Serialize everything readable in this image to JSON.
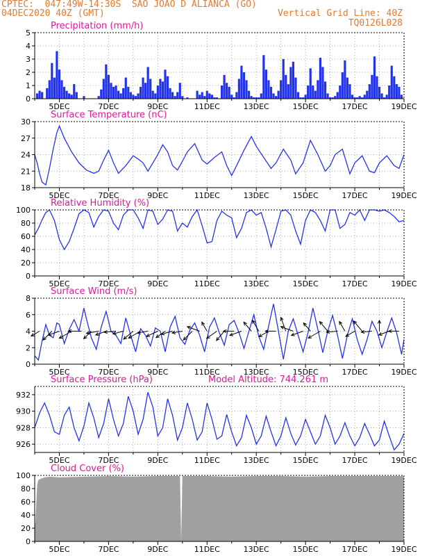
{
  "header": {
    "line1": "CPTEC:  047:49W-14:30S  SAO JOAO D ALIANCA (GO)",
    "line2": "04DEC2020 40Z (GMT)",
    "grid_note": "Vertical Grid Line: 40Z",
    "run_code": "TQ0126L028"
  },
  "colors": {
    "header": "#e8782a",
    "title": "#e0189a",
    "series": "#2233ee",
    "cloud": "#a0a0a0",
    "grid": "#888888"
  },
  "x_axis": {
    "start": "04DEC2020 00Z",
    "end": "19DEC2020 00Z",
    "tick_labels": [
      "5DEC",
      "7DEC",
      "9DEC",
      "11DEC",
      "13DEC",
      "15DEC",
      "17DEC",
      "19DEC"
    ]
  },
  "chart_data": [
    {
      "type": "bar",
      "title": "Precipitation (mm/h)",
      "ylim": [
        0,
        5
      ],
      "yticks": [
        "0",
        "1",
        "2",
        "3",
        "4",
        "5"
      ],
      "x_units": "days since 04DEC2020 00Z",
      "x": [
        0.1,
        0.2,
        0.3,
        0.5,
        0.6,
        0.7,
        0.8,
        0.9,
        1.0,
        1.1,
        1.2,
        1.3,
        1.4,
        1.5,
        1.6,
        1.7,
        2.0,
        2.6,
        2.7,
        2.8,
        2.9,
        3.0,
        3.1,
        3.2,
        3.3,
        3.4,
        3.5,
        3.6,
        3.7,
        3.8,
        3.9,
        4.0,
        4.1,
        4.2,
        4.3,
        4.4,
        4.5,
        4.6,
        4.7,
        4.8,
        4.9,
        5.0,
        5.1,
        5.2,
        5.3,
        5.4,
        5.5,
        5.6,
        5.7,
        5.8,
        5.9,
        6.0,
        6.2,
        6.6,
        6.7,
        6.8,
        6.9,
        7.0,
        7.1,
        7.2,
        7.3,
        7.4,
        7.6,
        7.7,
        7.8,
        7.9,
        8.0,
        8.1,
        8.2,
        8.3,
        8.4,
        8.5,
        8.6,
        8.7,
        8.8,
        8.9,
        9.0,
        9.1,
        9.2,
        9.3,
        9.4,
        9.5,
        9.6,
        9.7,
        9.8,
        9.9,
        10.0,
        10.1,
        10.2,
        10.3,
        10.4,
        10.5,
        10.6,
        10.7,
        10.8,
        10.9,
        11.0,
        11.1,
        11.2,
        11.3,
        11.4,
        11.5,
        11.6,
        11.7,
        11.8,
        11.9,
        12.0,
        12.1,
        12.2,
        12.3,
        12.4,
        12.5,
        12.6,
        12.7,
        12.8,
        12.9,
        13.0,
        13.1,
        13.2,
        13.3,
        13.4,
        13.5,
        13.6,
        13.7,
        13.8,
        13.9,
        14.0,
        14.1,
        14.2,
        14.3,
        14.4,
        14.5,
        14.6,
        14.7,
        14.8,
        14.9
      ],
      "values": [
        0.4,
        0.6,
        0.5,
        0.8,
        1.4,
        2.7,
        1.6,
        3.6,
        2.2,
        1.4,
        0.9,
        0.6,
        0.4,
        0.3,
        1.1,
        0.5,
        0.2,
        0.2,
        0.7,
        1.5,
        2.6,
        1.8,
        1.2,
        0.9,
        1.0,
        0.6,
        0.4,
        0.8,
        1.6,
        0.9,
        0.5,
        0.3,
        0.2,
        0.4,
        0.9,
        1.6,
        1.2,
        2.4,
        1.5,
        0.6,
        0.4,
        1.0,
        1.5,
        1.3,
        2.2,
        1.7,
        0.8,
        0.5,
        0.2,
        0.5,
        1.2,
        0.2,
        0.1,
        0.6,
        0.3,
        0.5,
        0.2,
        0.6,
        0.4,
        0.3,
        0.1,
        0.1,
        1.0,
        1.8,
        1.2,
        0.9,
        0.3,
        0.1,
        0.5,
        1.5,
        2.5,
        2.0,
        1.4,
        0.6,
        0.2,
        0.1,
        0.1,
        0.1,
        0.4,
        3.3,
        2.2,
        1.4,
        0.9,
        0.4,
        0.2,
        0.6,
        1.4,
        3.0,
        1.8,
        1.1,
        2.4,
        2.8,
        1.6,
        0.5,
        0.1,
        0.1,
        0.3,
        1.0,
        2.3,
        1.0,
        0.6,
        1.4,
        3.1,
        2.4,
        1.3,
        0.4,
        0.1,
        0.1,
        0.2,
        0.5,
        1.0,
        2.0,
        2.9,
        1.6,
        1.1,
        0.3,
        0.1,
        0.1,
        0.2,
        0.1,
        0.3,
        0.6,
        1.1,
        1.8,
        3.2,
        1.7,
        0.9,
        0.4,
        0.1,
        0.3,
        1.0,
        2.5,
        1.7,
        1.1,
        0.9,
        0.3
      ]
    },
    {
      "type": "line",
      "title": "Surface Temperature (nC)",
      "ylim": [
        18,
        30
      ],
      "yticks": [
        "18",
        "21",
        "24",
        "27",
        "30"
      ],
      "x_units": "days since 04DEC2020 00Z",
      "x": [
        0,
        0.1,
        0.2,
        0.3,
        0.45,
        0.6,
        0.75,
        0.9,
        1.0,
        1.2,
        1.5,
        1.8,
        2.1,
        2.4,
        2.6,
        2.8,
        3.0,
        3.2,
        3.4,
        3.7,
        4.0,
        4.2,
        4.4,
        4.6,
        4.8,
        5.0,
        5.2,
        5.4,
        5.6,
        5.8,
        6.0,
        6.2,
        6.5,
        6.8,
        7.0,
        7.3,
        7.6,
        7.8,
        8.0,
        8.2,
        8.5,
        8.8,
        9.0,
        9.3,
        9.6,
        9.8,
        10.1,
        10.4,
        10.6,
        10.9,
        11.2,
        11.5,
        11.8,
        12.0,
        12.2,
        12.5,
        12.8,
        13.0,
        13.3,
        13.6,
        13.8,
        14.0,
        14.3,
        14.6,
        14.8,
        15.0
      ],
      "values": [
        24,
        22.5,
        20.5,
        19.0,
        18.5,
        21.5,
        25,
        28,
        29.2,
        27,
        24.5,
        22.5,
        21.2,
        20.6,
        21,
        23,
        24.8,
        22.5,
        20.6,
        22,
        23.8,
        23.2,
        22.5,
        21,
        22.5,
        24,
        25.8,
        24.5,
        22,
        21.2,
        22.8,
        24.5,
        26,
        23,
        22.3,
        23.5,
        24.5,
        22,
        20.2,
        22,
        24.8,
        27.3,
        25.5,
        23.5,
        21.5,
        22.5,
        25,
        23,
        20.5,
        22.5,
        26.6,
        24,
        21,
        22,
        24,
        25,
        20.5,
        22.5,
        23.8,
        21,
        20.7,
        22.5,
        23.8,
        22,
        21.5,
        24
      ]
    },
    {
      "type": "line",
      "title": "Relative Humidity (%)",
      "ylim": [
        0,
        100
      ],
      "yticks": [
        "0",
        "20",
        "40",
        "60",
        "80",
        "100"
      ],
      "x_units": "days since 04DEC2020 00Z",
      "x": [
        0,
        0.15,
        0.3,
        0.45,
        0.6,
        0.8,
        1.0,
        1.2,
        1.4,
        1.6,
        1.8,
        2.0,
        2.2,
        2.4,
        2.6,
        2.8,
        3.0,
        3.2,
        3.4,
        3.6,
        3.8,
        4.0,
        4.2,
        4.4,
        4.6,
        4.8,
        5.0,
        5.2,
        5.4,
        5.6,
        5.8,
        6.0,
        6.2,
        6.4,
        6.6,
        6.8,
        7.0,
        7.2,
        7.4,
        7.6,
        7.8,
        8.0,
        8.2,
        8.4,
        8.6,
        8.8,
        9.0,
        9.2,
        9.4,
        9.6,
        9.8,
        10.0,
        10.2,
        10.4,
        10.6,
        10.8,
        11.0,
        11.2,
        11.4,
        11.6,
        11.8,
        12.0,
        12.2,
        12.4,
        12.6,
        12.8,
        13.0,
        13.2,
        13.4,
        13.6,
        13.8,
        14.0,
        14.2,
        14.4,
        14.6,
        14.8,
        15.0
      ],
      "values": [
        62,
        72,
        85,
        96,
        100,
        84,
        55,
        40,
        52,
        72,
        94,
        100,
        96,
        74,
        90,
        100,
        98,
        80,
        70,
        92,
        100,
        100,
        88,
        72,
        100,
        98,
        78,
        86,
        100,
        98,
        68,
        80,
        74,
        90,
        100,
        76,
        50,
        52,
        84,
        98,
        92,
        88,
        58,
        72,
        96,
        100,
        92,
        96,
        72,
        44,
        70,
        98,
        100,
        92,
        68,
        48,
        84,
        100,
        96,
        84,
        68,
        100,
        100,
        72,
        78,
        96,
        92,
        100,
        84,
        100,
        100,
        98,
        100,
        96,
        90,
        82,
        84
      ]
    },
    {
      "type": "line",
      "title": "Surface Wind (m/s)",
      "ylim": [
        0,
        8
      ],
      "yticks": [
        "0",
        "2",
        "4",
        "6",
        "8"
      ],
      "x_units": "days since 04DEC2020 00Z",
      "x": [
        0,
        0.15,
        0.3,
        0.45,
        0.6,
        0.75,
        0.9,
        1.0,
        1.2,
        1.4,
        1.6,
        1.8,
        2.0,
        2.1,
        2.3,
        2.5,
        2.7,
        2.9,
        3.1,
        3.3,
        3.5,
        3.7,
        3.9,
        4.1,
        4.3,
        4.5,
        4.7,
        4.9,
        5.1,
        5.3,
        5.5,
        5.7,
        5.9,
        6.1,
        6.3,
        6.5,
        6.7,
        6.9,
        7.1,
        7.3,
        7.5,
        7.7,
        7.9,
        8.1,
        8.3,
        8.5,
        8.7,
        8.9,
        9.1,
        9.3,
        9.5,
        9.7,
        9.9,
        10.1,
        10.3,
        10.5,
        10.7,
        10.9,
        11.1,
        11.3,
        11.5,
        11.7,
        11.9,
        12.1,
        12.3,
        12.5,
        12.7,
        12.9,
        13.1,
        13.3,
        13.5,
        13.7,
        13.9,
        14.1,
        14.3,
        14.5,
        14.7,
        14.9,
        15.0
      ],
      "values": [
        1.0,
        0.5,
        2.8,
        4.8,
        3.5,
        3.2,
        5.0,
        4.8,
        2.5,
        4.2,
        5.4,
        4.0,
        6.8,
        5.5,
        3.2,
        1.8,
        4.5,
        6.4,
        4.0,
        3.5,
        2.5,
        5.6,
        3.5,
        1.5,
        4.3,
        3.5,
        2.2,
        4.4,
        4.0,
        1.5,
        4.5,
        5.8,
        3.2,
        2.4,
        4.1,
        5.0,
        3.5,
        1.5,
        4.5,
        5.6,
        3.8,
        2.3,
        4.8,
        5.3,
        3.8,
        1.9,
        4.0,
        6.0,
        3.4,
        1.8,
        4.6,
        7.3,
        4.0,
        0.6,
        4.0,
        5.5,
        3.5,
        1.5,
        3.8,
        6.8,
        4.2,
        1.4,
        4.0,
        5.9,
        3.5,
        0.7,
        3.5,
        5.5,
        3.0,
        1.2,
        3.0,
        5.2,
        4.0,
        2.0,
        3.9,
        5.6,
        3.8,
        1.2,
        3.0
      ],
      "vectors_x": [
        0.2,
        0.7,
        1.0,
        1.5,
        1.9,
        2.3,
        2.6,
        2.9,
        3.3,
        3.6,
        4.0,
        4.3,
        4.6,
        5.0,
        5.3,
        5.6,
        6.0,
        6.4,
        6.7,
        7.0,
        7.4,
        7.7,
        8.1,
        8.4,
        8.8,
        9.1,
        9.5,
        9.8,
        10.2,
        10.5,
        10.9,
        11.2,
        11.6,
        11.9,
        12.3,
        12.6,
        13.0,
        13.3,
        13.7,
        14.0,
        14.4,
        14.8
      ],
      "vectors_mag": [
        1.2,
        2.0,
        1.8,
        2.5,
        2.2,
        1.5,
        2.0,
        1.6,
        1.8,
        1.5,
        2.0,
        2.4,
        1.5,
        2.0,
        1.6,
        1.8,
        1.4,
        2.0,
        2.2,
        1.4,
        2.0,
        1.9,
        1.5,
        2.0,
        1.8,
        2.0,
        1.6,
        1.5,
        2.6,
        2.2,
        2.0,
        1.5,
        2.4,
        2.0,
        1.6,
        1.6,
        1.4,
        2.2,
        1.5,
        1.5,
        1.6,
        1.4
      ],
      "vectors_dir": [
        210,
        225,
        200,
        210,
        180,
        225,
        190,
        200,
        185,
        195,
        220,
        210,
        190,
        205,
        215,
        195,
        190,
        225,
        160,
        120,
        215,
        230,
        180,
        200,
        130,
        120,
        210,
        180,
        110,
        160,
        200,
        130,
        210,
        130,
        185,
        120,
        210,
        130,
        185,
        90,
        200,
        180
      ]
    },
    {
      "type": "line",
      "title": "Surface Pressure (hPa)",
      "subtitle": "Model Altitude: 744.261 m",
      "ylim": [
        925,
        933
      ],
      "yticks": [
        "926",
        "928",
        "930",
        "932"
      ],
      "x_units": "days since 04DEC2020 00Z",
      "x": [
        0,
        0.2,
        0.4,
        0.6,
        0.8,
        1.0,
        1.2,
        1.4,
        1.6,
        1.8,
        2.0,
        2.2,
        2.4,
        2.6,
        2.8,
        3.0,
        3.2,
        3.4,
        3.6,
        3.8,
        4.0,
        4.2,
        4.4,
        4.6,
        4.8,
        5.0,
        5.2,
        5.4,
        5.6,
        5.8,
        6.0,
        6.2,
        6.4,
        6.6,
        6.8,
        7.0,
        7.2,
        7.4,
        7.6,
        7.8,
        8.0,
        8.2,
        8.4,
        8.6,
        8.8,
        9.0,
        9.2,
        9.4,
        9.6,
        9.8,
        10.0,
        10.2,
        10.4,
        10.6,
        10.8,
        11.0,
        11.2,
        11.4,
        11.6,
        11.8,
        12.0,
        12.2,
        12.4,
        12.6,
        12.8,
        13.0,
        13.2,
        13.4,
        13.6,
        13.8,
        14.0,
        14.2,
        14.4,
        14.6,
        14.8,
        15.0
      ],
      "values": [
        928.0,
        929.8,
        931.0,
        929.5,
        927.5,
        927.2,
        929.5,
        930.5,
        928.0,
        926.4,
        928.2,
        931.0,
        929.2,
        926.8,
        928.5,
        931.5,
        929.0,
        927.0,
        928.5,
        931.8,
        930.0,
        927.2,
        929.0,
        932.3,
        930.5,
        927.0,
        928.0,
        931.5,
        929.5,
        926.5,
        928.0,
        931.0,
        929.0,
        926.5,
        927.5,
        931.0,
        929.0,
        926.6,
        927.0,
        929.6,
        927.5,
        925.8,
        926.8,
        929.5,
        928.0,
        926.0,
        927.0,
        929.4,
        927.5,
        925.8,
        927.0,
        929.2,
        927.3,
        925.9,
        927.0,
        929.0,
        927.5,
        926.0,
        927.0,
        929.5,
        928.0,
        926.0,
        927.0,
        928.6,
        927.0,
        925.8,
        926.8,
        928.5,
        927.2,
        925.8,
        926.5,
        928.8,
        927.0,
        925.3,
        926.0,
        927.3
      ]
    },
    {
      "type": "area",
      "title": "Cloud Cover (%)",
      "ylim": [
        0,
        100
      ],
      "yticks": [
        "0",
        "20",
        "40",
        "60",
        "80",
        "100"
      ],
      "x_units": "days since 04DEC2020 00Z",
      "x": [
        0,
        0.03,
        0.06,
        0.1,
        0.15,
        0.25,
        0.4,
        0.6,
        1.0,
        2.0,
        3.0,
        4.0,
        5.0,
        5.9,
        5.95,
        6.0,
        7.0,
        8.0,
        9.0,
        10.0,
        11.0,
        12.0,
        13.0,
        14.0,
        15.0
      ],
      "values": [
        20,
        30,
        55,
        85,
        93,
        95,
        97,
        98,
        97,
        98,
        99,
        98,
        99,
        99,
        0,
        99,
        99,
        98,
        99,
        99,
        98,
        99,
        99,
        99,
        99
      ]
    }
  ]
}
